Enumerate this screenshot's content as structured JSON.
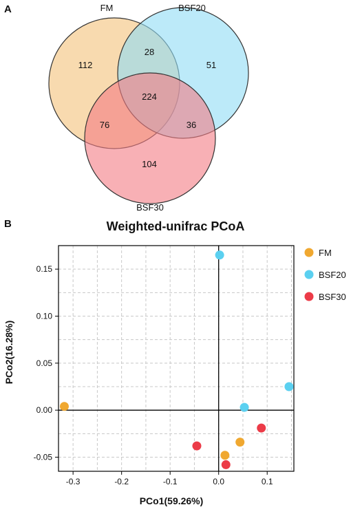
{
  "panels": {
    "venn_label": "A",
    "pcoa_label": "B"
  },
  "venn": {
    "sets": [
      {
        "name": "FM",
        "color": "#f3c27a"
      },
      {
        "name": "BSF20",
        "color": "#8fdcf5"
      },
      {
        "name": "BSF30",
        "color": "#f47b84"
      }
    ],
    "counts": {
      "FM_only": "112",
      "BSF20_only": "51",
      "BSF30_only": "104",
      "FM_BSF20": "28",
      "FM_BSF30": "76",
      "BSF20_BSF30": "36",
      "all": "224"
    }
  },
  "chart_data": {
    "type": "scatter",
    "title": "Weighted-unifrac PCoA",
    "xlabel": "PCo1(59.26%)",
    "ylabel": "PCo2(16.28%)",
    "xlim": [
      -0.33,
      0.155
    ],
    "ylim": [
      -0.065,
      0.175
    ],
    "xticks": [
      -0.3,
      -0.2,
      -0.1,
      0.0,
      0.1
    ],
    "xtick_labels": [
      "-0.3",
      "-0.2",
      "-0.1",
      "0.0",
      "0.1"
    ],
    "yticks": [
      -0.05,
      0.0,
      0.05,
      0.1,
      0.15
    ],
    "ytick_labels": [
      "-0.05",
      "0.00",
      "0.05",
      "0.10",
      "0.15"
    ],
    "grid": true,
    "legend_position": "right",
    "series": [
      {
        "name": "FM",
        "color": "#f0a830",
        "points": [
          [
            -0.318,
            0.004
          ],
          [
            0.044,
            -0.034
          ],
          [
            0.013,
            -0.048
          ]
        ]
      },
      {
        "name": "BSF20",
        "color": "#5bd0f0",
        "points": [
          [
            0.002,
            0.165
          ],
          [
            0.145,
            0.025
          ],
          [
            0.053,
            0.003
          ]
        ]
      },
      {
        "name": "BSF30",
        "color": "#ec3b48",
        "points": [
          [
            0.088,
            -0.019
          ],
          [
            -0.045,
            -0.038
          ],
          [
            0.015,
            -0.058
          ]
        ]
      }
    ]
  }
}
